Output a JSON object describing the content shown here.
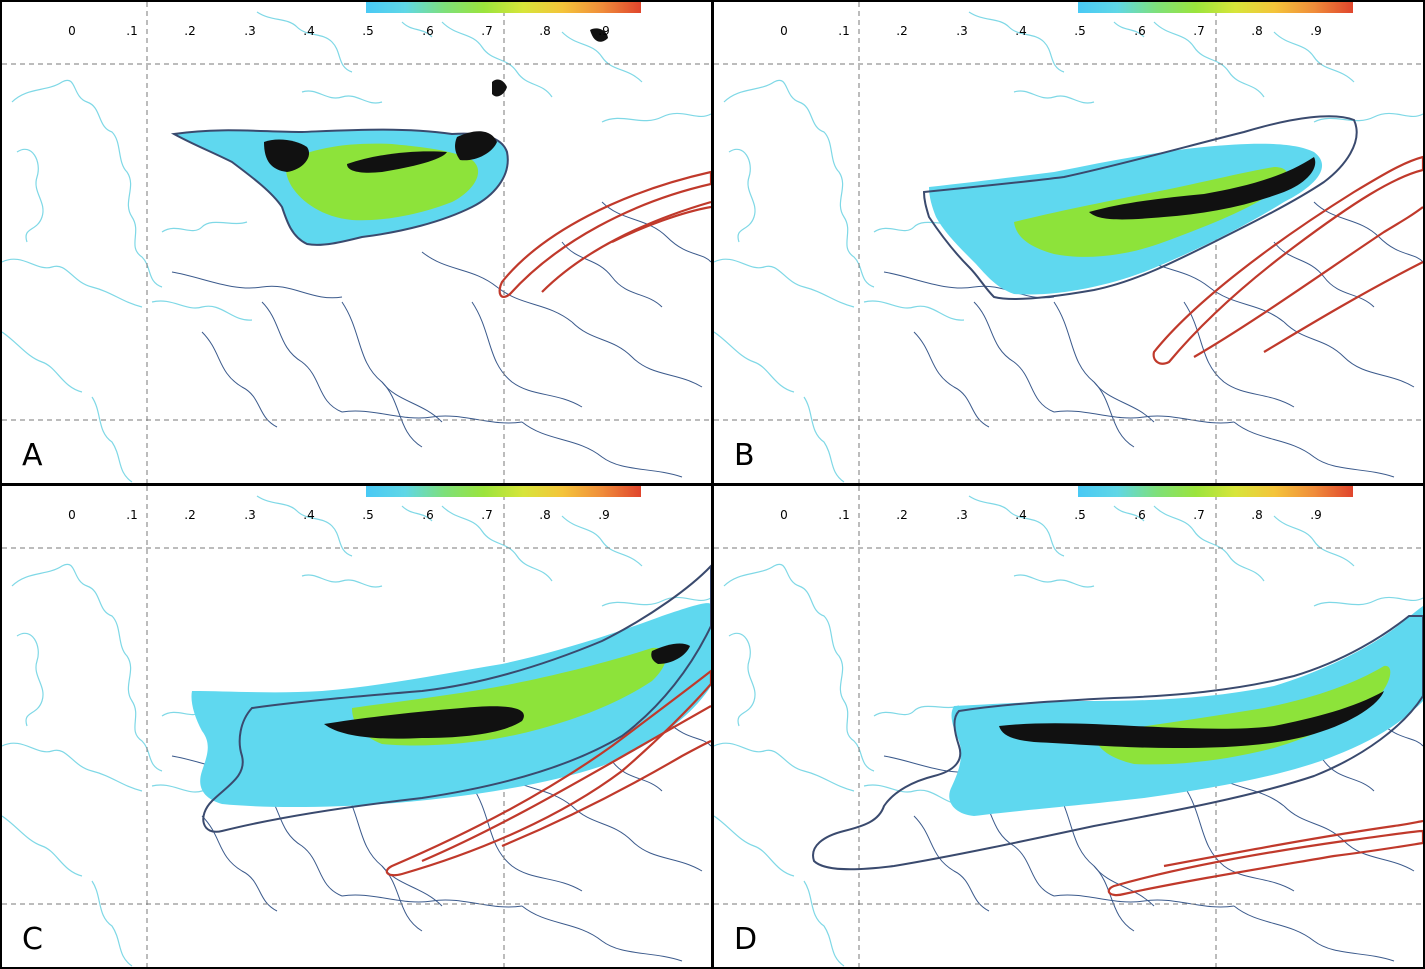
{
  "panels": [
    {
      "label": "A",
      "ticks": [
        "0",
        ".1",
        ".2",
        ".3",
        ".4",
        ".5",
        ".6",
        ".7",
        ".8",
        ".9"
      ]
    },
    {
      "label": "B",
      "ticks": [
        "0",
        ".1",
        ".2",
        ".3",
        ".4",
        ".5",
        ".6",
        ".7",
        ".8",
        ".9"
      ]
    },
    {
      "label": "C",
      "ticks": [
        "0",
        ".1",
        ".2",
        ".3",
        ".4",
        ".5",
        ".6",
        ".7",
        ".8",
        ".9"
      ]
    },
    {
      "label": "D",
      "ticks": [
        "0",
        ".1",
        ".2",
        ".3",
        ".4",
        ".5",
        ".6",
        ".7",
        ".8",
        ".9"
      ]
    }
  ],
  "colorbar": {
    "range": [
      0.5,
      1.0
    ],
    "stops": [
      "#49c9f5",
      "#5fd7e6",
      "#7ee07a",
      "#9be43c",
      "#d7e53a",
      "#f4c43a",
      "#f08d3a",
      "#e0452d"
    ]
  },
  "colors": {
    "coastline": "#7fd8e6",
    "border": "#3b5a8c",
    "gridline": "#7a7a7a",
    "contour_outer": "#3a4a6e",
    "contour_red": "#c0392b",
    "fill_blue": "#5fd8ef",
    "fill_green": "#8de33a",
    "observed": "#111111"
  }
}
